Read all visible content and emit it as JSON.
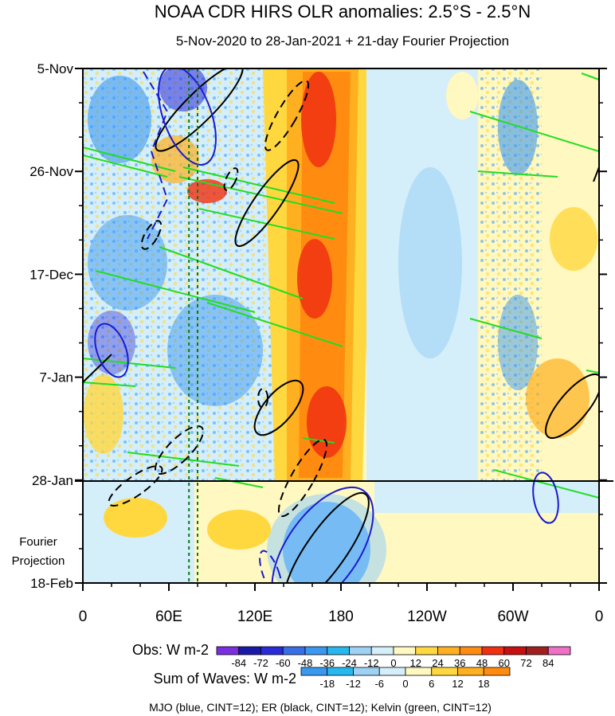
{
  "chart_data": {
    "type": "heatmap",
    "title": "NOAA CDR HIRS OLR anomalies: 2.5°S - 2.5°N",
    "subtitle": "5-Nov-2020 to 28-Jan-2021 + 21-day Fourier Projection",
    "y_ticks": [
      "5-Nov",
      "26-Nov",
      "17-Dec",
      "7-Jan",
      "28-Jan",
      "18-Feb"
    ],
    "projection_label": [
      "Fourier",
      "Projection"
    ],
    "x_ticks": [
      "0",
      "60E",
      "120E",
      "180",
      "120W",
      "60W",
      "0"
    ],
    "xlim": [
      0,
      360
    ],
    "obs_colorbar": {
      "label": "Obs: W m-2",
      "levels": [
        "-84",
        "-72",
        "-60",
        "-48",
        "-36",
        "-24",
        "-12",
        "0",
        "12",
        "24",
        "36",
        "48",
        "60",
        "72",
        "84"
      ],
      "colors": [
        "#7b2fe0",
        "#1a1aa8",
        "#2a2ad8",
        "#3a6ee8",
        "#3a98f0",
        "#28b8f0",
        "#9ed2f5",
        "#d4eefa",
        "#fff8c0",
        "#ffd840",
        "#ffb020",
        "#ff8c10",
        "#f03010",
        "#c81010",
        "#a02020",
        "#f070c8"
      ]
    },
    "wave_colorbar": {
      "label": "Sum of Waves: W m-2",
      "levels": [
        "-18",
        "-12",
        "-6",
        "0",
        "6",
        "12",
        "18"
      ],
      "colors": [
        "#3a98f0",
        "#28b8f0",
        "#9ed2f5",
        "#d4eefa",
        "#fff8c0",
        "#ffd840",
        "#ffb020",
        "#ff8c10"
      ]
    },
    "footer": "MJO (blue, CINT=12); ER (black, CINT=12); Kelvin (green, CINT=12)",
    "series": [
      {
        "name": "MJO",
        "color": "#1a1ad0"
      },
      {
        "name": "ER",
        "color": "#000000"
      },
      {
        "name": "Kelvin",
        "color": "#22dd22"
      }
    ],
    "reference_lines_lon": [
      74,
      80
    ]
  }
}
